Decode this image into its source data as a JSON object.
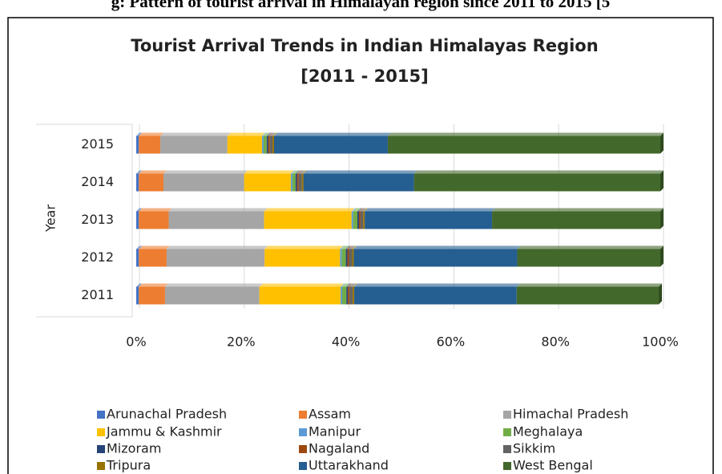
{
  "caption": "g: Pattern of tourist arrival in Himalayan region since 2011 to 2015 [5",
  "chart_data": {
    "type": "stacked_barh",
    "title": [
      "Tourist Arrival Trends in Indian Himalayas Region",
      "[2011 - 2015]"
    ],
    "ylabel": "Year",
    "categories": [
      "2011",
      "2012",
      "2013",
      "2014",
      "2015"
    ],
    "xlim": [
      0,
      100
    ],
    "xticks": [
      {
        "value": 0,
        "label": "0%"
      },
      {
        "value": 20,
        "label": "20%"
      },
      {
        "value": 40,
        "label": "40%"
      },
      {
        "value": 60,
        "label": "60%"
      },
      {
        "value": 80,
        "label": "80%"
      },
      {
        "value": 100,
        "label": "100%"
      }
    ],
    "grid": true,
    "legend": "bottom",
    "series": [
      {
        "name": "Arunachal Pradesh",
        "color": "#4472c4",
        "values": [
          0.5,
          0.5,
          0.5,
          0.5,
          0.5
        ]
      },
      {
        "name": "Assam",
        "color": "#ed7d31",
        "values": [
          5,
          5.3,
          5.7,
          4.7,
          4.1
        ]
      },
      {
        "name": "Himachal Pradesh",
        "color": "#a5a5a5",
        "values": [
          18,
          18.7,
          18.2,
          15.4,
          12.8
        ]
      },
      {
        "name": "Jammu & Kashmir",
        "color": "#ffc000",
        "values": [
          15.5,
          14.4,
          16.7,
          8.9,
          6.6
        ]
      },
      {
        "name": "Manipur",
        "color": "#5b9bd5",
        "values": [
          0.3,
          0.3,
          0.3,
          0.3,
          0.3
        ]
      },
      {
        "name": "Meghalaya",
        "color": "#70ad47",
        "values": [
          0.8,
          0.8,
          0.8,
          0.6,
          0.6
        ]
      },
      {
        "name": "Mizoram",
        "color": "#264478",
        "values": [
          0.3,
          0.3,
          0.3,
          0.3,
          0.3
        ]
      },
      {
        "name": "Nagaland",
        "color": "#9e480e",
        "values": [
          0.3,
          0.3,
          0.3,
          0.3,
          0.3
        ]
      },
      {
        "name": "Sikkim",
        "color": "#636363",
        "values": [
          0.6,
          0.6,
          0.5,
          0.6,
          0.5
        ]
      },
      {
        "name": "Tripura",
        "color": "#997300",
        "values": [
          0.3,
          0.3,
          0.3,
          0.3,
          0.3
        ]
      },
      {
        "name": "Uttarakhand",
        "color": "#255e91",
        "values": [
          31,
          31.2,
          24.3,
          21.1,
          21.7
        ]
      },
      {
        "name": "West Bengal",
        "color": "#43682b",
        "values": [
          27.1,
          27.3,
          32.1,
          47,
          52
        ]
      }
    ]
  }
}
